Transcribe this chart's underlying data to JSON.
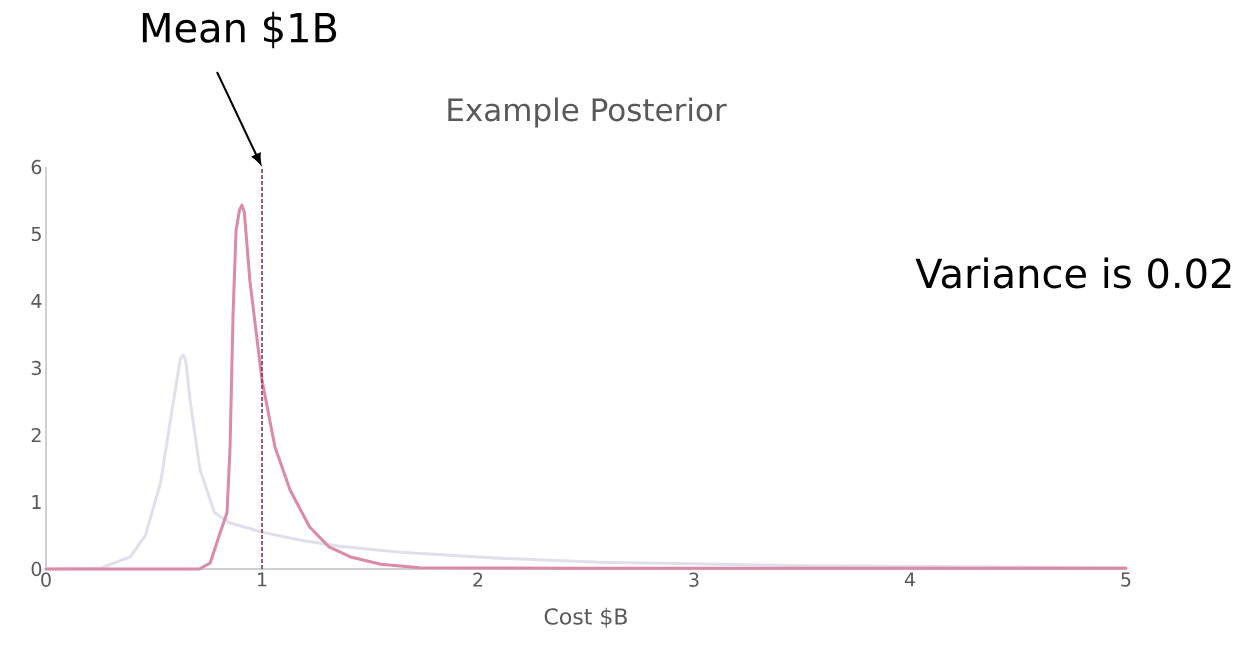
{
  "chart_data": {
    "type": "line",
    "title": "Example Posterior",
    "xlabel": "Cost $B",
    "xlim": [
      0,
      5
    ],
    "xticks": [
      0,
      1,
      2,
      3,
      4,
      5
    ],
    "ylim": [
      0,
      6
    ],
    "yticks": [
      0,
      1,
      2,
      3,
      4,
      5,
      6
    ],
    "series": [
      {
        "color": "#dfe0ec",
        "x": [
          0,
          0.25,
          0.39,
          0.46,
          0.53,
          0.58,
          0.61,
          0.62,
          0.627,
          0.634,
          0.641,
          0.648,
          0.667,
          0.713,
          0.78,
          0.85,
          1.0,
          1.18,
          1.36,
          1.64,
          2.1,
          2.56,
          3.49,
          5
        ],
        "values": [
          0,
          0.01,
          0.18,
          0.5,
          1.28,
          2.3,
          2.9,
          3.1,
          3.17,
          3.19,
          3.16,
          3.08,
          2.52,
          1.48,
          0.84,
          0.69,
          0.55,
          0.43,
          0.34,
          0.25,
          0.16,
          0.1,
          0.05,
          0.02
        ]
      },
      {
        "color": "#dc8aa5",
        "x": [
          0,
          0.71,
          0.76,
          0.8,
          0.838,
          0.852,
          0.866,
          0.88,
          0.896,
          0.907,
          0.918,
          0.944,
          1.0,
          1.06,
          1.13,
          1.22,
          1.31,
          1.41,
          1.55,
          1.73,
          2.5,
          5
        ],
        "values": [
          0,
          0,
          0.09,
          0.48,
          0.84,
          1.8,
          3.8,
          5.06,
          5.36,
          5.43,
          5.33,
          4.3,
          2.82,
          1.82,
          1.18,
          0.63,
          0.33,
          0.18,
          0.07,
          0.02,
          0.01,
          0.01
        ]
      }
    ],
    "ref_lines": [
      {
        "axis": "x",
        "value": 1,
        "color": "#8b2346",
        "line_style": "dashed"
      }
    ],
    "annotations": [
      {
        "text": "Mean $1B",
        "x": 1,
        "y": 6
      },
      "Variance is 0.02"
    ]
  }
}
